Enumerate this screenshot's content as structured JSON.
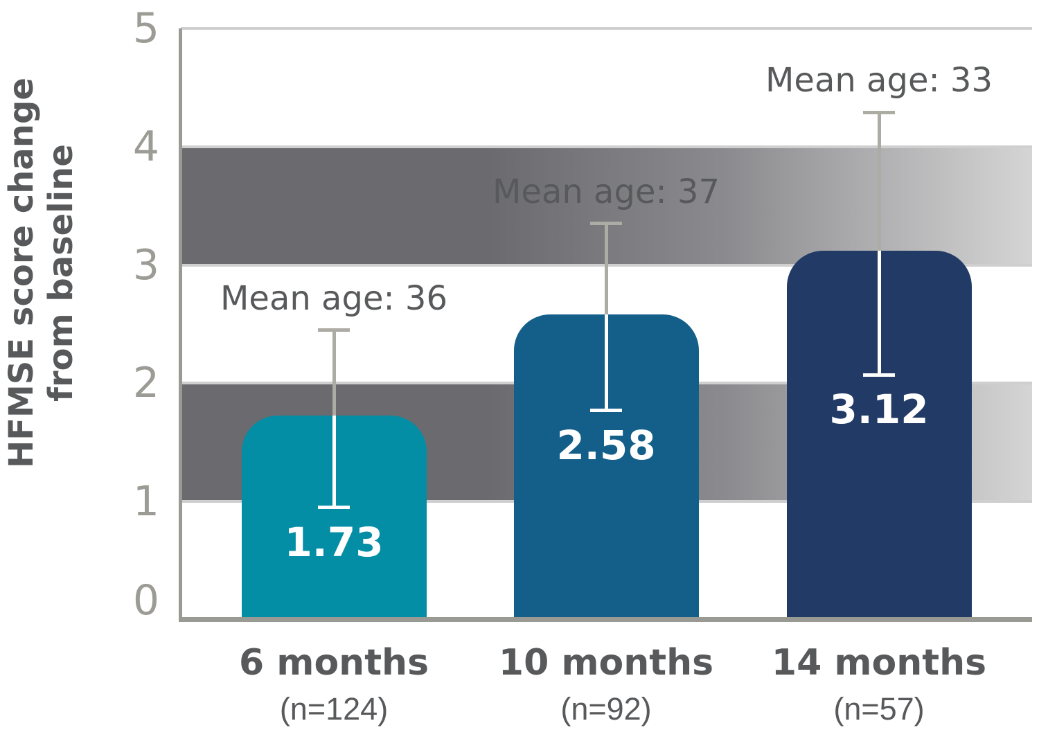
{
  "chart_data": {
    "type": "bar",
    "title": "",
    "ylabel_line1": "HFMSE score change",
    "ylabel_line2": "from baseline",
    "xlabel": "",
    "ylim": [
      0,
      5
    ],
    "yticks": [
      0,
      1,
      2,
      3,
      4,
      5
    ],
    "grid_bands": [
      {
        "from": 1,
        "to": 2
      },
      {
        "from": 3,
        "to": 4
      }
    ],
    "legend": "none",
    "categories": [
      "6 months",
      "10 months",
      "14 months"
    ],
    "bars": [
      {
        "label": "6 months",
        "n_label": "(n=124)",
        "value": 1.73,
        "value_label": "1.73",
        "mean_age_label": "Mean age: 36",
        "error_low": 0.95,
        "error_high": 2.45,
        "color": "#048EA5"
      },
      {
        "label": "10 months",
        "n_label": "(n=92)",
        "value": 2.58,
        "value_label": "2.58",
        "mean_age_label": "Mean age: 37",
        "error_low": 1.77,
        "error_high": 3.35,
        "color": "#135F89"
      },
      {
        "label": "14 months",
        "n_label": "(n=57)",
        "value": 3.12,
        "value_label": "3.12",
        "mean_age_label": "Mean age: 33",
        "error_low": 2.07,
        "error_high": 4.29,
        "color": "#223A66"
      }
    ],
    "colors": {
      "text_dark": "#58595B",
      "tick_gray": "#9C9B95",
      "axis_gray": "#9A9A94",
      "gridline_light": "#CFCFCF",
      "band_dark": "#6A6A6F",
      "band_mid": "#8B8B8F",
      "band_light": "#D5D5D5",
      "error_gray": "#ACABA4",
      "error_white": "#FFFFFF",
      "value_text": "#FFFFFF",
      "bar_teal": "#048EA5",
      "bar_blue": "#135F89",
      "bar_navy": "#223A66"
    }
  }
}
